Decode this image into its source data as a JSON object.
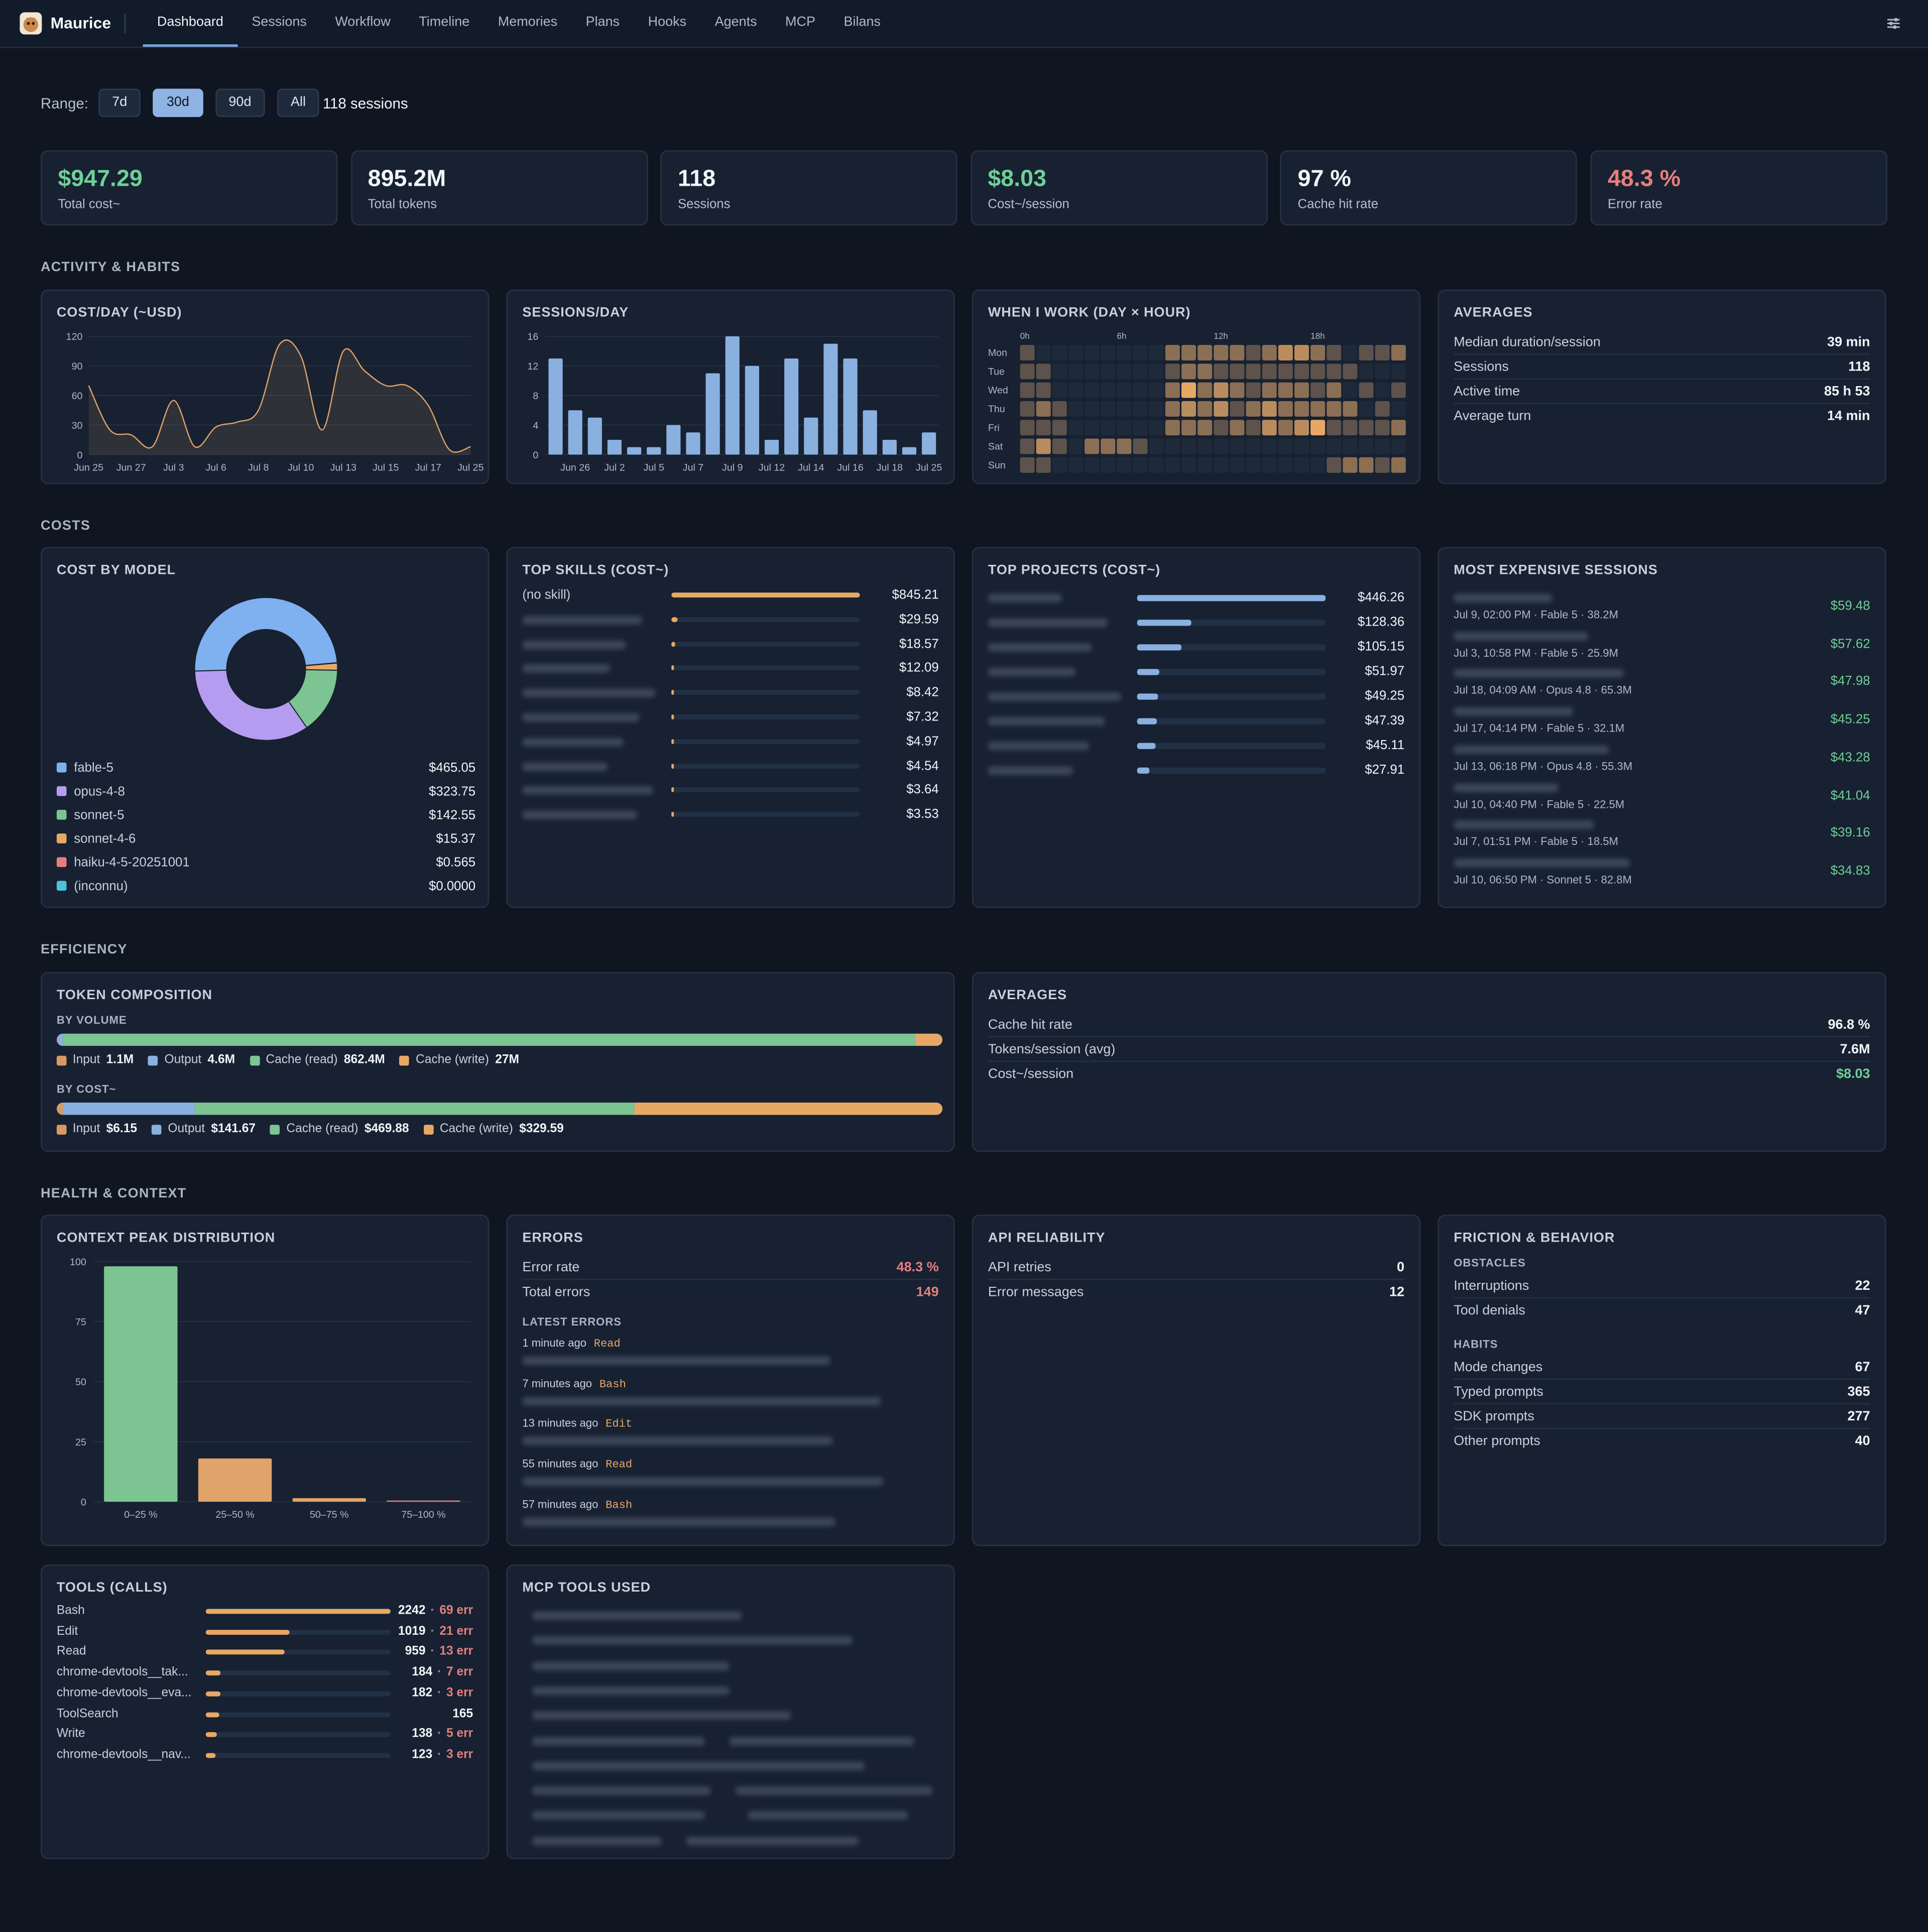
{
  "nav": {
    "brand": "Maurice",
    "tabs": [
      {
        "label": "Dashboard",
        "active": true
      },
      {
        "label": "Sessions"
      },
      {
        "label": "Workflow"
      },
      {
        "label": "Timeline"
      },
      {
        "label": "Memories"
      },
      {
        "label": "Plans"
      },
      {
        "label": "Hooks"
      },
      {
        "label": "Agents"
      },
      {
        "label": "MCP"
      },
      {
        "label": "Bilans"
      }
    ]
  },
  "range": {
    "label": "Range:",
    "options": [
      {
        "label": "7d"
      },
      {
        "label": "30d",
        "selected": true
      },
      {
        "label": "90d"
      },
      {
        "label": "All"
      }
    ],
    "summary": "118 sessions"
  },
  "kpis": [
    {
      "value": "$947.29",
      "label": "Total cost~",
      "color": "#6fcf97"
    },
    {
      "value": "895.2M",
      "label": "Total tokens",
      "color": "#f2f5f9"
    },
    {
      "value": "118",
      "label": "Sessions",
      "color": "#f2f5f9"
    },
    {
      "value": "$8.03",
      "label": "Cost~/session",
      "color": "#6fcf97"
    },
    {
      "value": "97 %",
      "label": "Cache hit rate",
      "color": "#f2f5f9"
    },
    {
      "value": "48.3 %",
      "label": "Error rate",
      "color": "#e57f7f"
    }
  ],
  "sections": [
    "ACTIVITY & HABITS",
    "COSTS",
    "EFFICIENCY",
    "HEALTH & CONTEXT"
  ],
  "chart_data": [
    {
      "type": "line",
      "title": "COST/DAY (~USD)",
      "categories": [
        "Jun 25",
        null,
        "Jun 27",
        null,
        "Jul 3",
        null,
        "Jul 6",
        null,
        "Jul 8",
        null,
        "Jul 10",
        null,
        "Jul 13",
        null,
        "Jul 15",
        null,
        "Jul 17",
        null,
        "Jul 25"
      ],
      "values": [
        70,
        25,
        20,
        8,
        55,
        8,
        28,
        33,
        45,
        112,
        100,
        25,
        105,
        85,
        70,
        70,
        50,
        5,
        8
      ],
      "ylim": [
        0,
        120
      ],
      "yticks": [
        0,
        30,
        60,
        90,
        120
      ],
      "color": "#e0a36a",
      "grid": true
    },
    {
      "type": "bar",
      "title": "SESSIONS/DAY",
      "categories": [
        null,
        "Jun 26",
        null,
        "Jul 2",
        null,
        "Jul 5",
        null,
        "Jul 7",
        null,
        "Jul 9",
        null,
        "Jul 12",
        null,
        "Jul 14",
        null,
        "Jul 16",
        null,
        "Jul 18",
        null,
        "Jul 25"
      ],
      "values": [
        13,
        6,
        5,
        2,
        1,
        1,
        4,
        3,
        11,
        16,
        12,
        2,
        13,
        5,
        15,
        13,
        6,
        2,
        1,
        3
      ],
      "ylim": [
        0,
        16
      ],
      "yticks": [
        0,
        4,
        8,
        12,
        16
      ],
      "color": "#8ab0e0",
      "grid": true
    },
    {
      "type": "heatmap",
      "title": "WHEN I WORK (DAY × HOUR)",
      "rows": [
        "Mon",
        "Tue",
        "Wed",
        "Thu",
        "Fri",
        "Sat",
        "Sun"
      ],
      "columns": [
        "0h",
        null,
        null,
        null,
        null,
        null,
        "6h",
        null,
        null,
        null,
        null,
        null,
        "12h",
        null,
        null,
        null,
        null,
        null,
        "18h",
        null,
        null,
        null,
        null,
        null
      ],
      "values": [
        [
          1,
          0,
          0,
          0,
          0,
          0,
          0,
          0,
          0,
          2,
          2,
          2,
          2,
          2,
          1,
          2,
          3,
          3,
          2,
          1,
          0,
          1,
          1,
          2
        ],
        [
          1,
          1,
          0,
          0,
          0,
          0,
          0,
          0,
          0,
          1,
          2,
          2,
          1,
          1,
          1,
          1,
          1,
          1,
          1,
          1,
          1,
          0,
          0,
          0
        ],
        [
          1,
          1,
          0,
          0,
          0,
          0,
          0,
          0,
          0,
          2,
          4,
          2,
          3,
          2,
          1,
          2,
          2,
          2,
          1,
          2,
          0,
          1,
          0,
          1
        ],
        [
          1,
          2,
          1,
          0,
          0,
          0,
          0,
          0,
          0,
          2,
          3,
          2,
          3,
          1,
          2,
          3,
          2,
          2,
          2,
          2,
          2,
          0,
          1,
          0
        ],
        [
          1,
          1,
          1,
          0,
          0,
          0,
          0,
          0,
          0,
          2,
          2,
          2,
          1,
          2,
          1,
          3,
          2,
          3,
          4,
          1,
          1,
          1,
          1,
          2
        ],
        [
          1,
          3,
          1,
          0,
          2,
          2,
          2,
          1,
          0,
          0,
          0,
          0,
          0,
          0,
          0,
          0,
          0,
          0,
          0,
          0,
          0,
          0,
          0,
          0
        ],
        [
          1,
          1,
          0,
          0,
          0,
          0,
          0,
          0,
          0,
          0,
          0,
          0,
          0,
          0,
          0,
          0,
          0,
          0,
          0,
          1,
          2,
          2,
          1,
          2
        ]
      ],
      "color": "#e8a865"
    },
    {
      "type": "pie",
      "title": "COST BY MODEL",
      "categories": [
        "fable-5",
        "opus-4-8",
        "sonnet-5",
        "sonnet-4-6",
        "haiku-4-5-20251001",
        "(inconnu)"
      ],
      "values": [
        465.05,
        323.75,
        142.55,
        15.37,
        0.565,
        0
      ],
      "value_labels": [
        "$465.05",
        "$323.75",
        "$142.55",
        "$15.37",
        "$0.565",
        "$0.0000"
      ],
      "colors": [
        "#7fb0f0",
        "#b69cf0",
        "#7cc492",
        "#e8a865",
        "#e57f7f",
        "#4dc3d8"
      ]
    },
    {
      "type": "bar",
      "title": "CONTEXT PEAK DISTRIBUTION",
      "categories": [
        "0–25 %",
        "25–50 %",
        "50–75 %",
        "75–100 %"
      ],
      "values": [
        98,
        18,
        1.5,
        0.5
      ],
      "colors": [
        "#7cc492",
        "#e0a36a",
        "#e0a36a",
        "#e57f7f"
      ],
      "ylim": [
        0,
        100
      ],
      "yticks": [
        0,
        25,
        50,
        75,
        100
      ],
      "grid": true
    }
  ],
  "activity_averages": {
    "title": "AVERAGES",
    "rows": [
      {
        "label": "Median duration/session",
        "value": "39 min"
      },
      {
        "label": "Sessions",
        "value": "118"
      },
      {
        "label": "Active time",
        "value": "85 h 53"
      },
      {
        "label": "Average turn",
        "value": "14 min"
      }
    ]
  },
  "top_skills": {
    "title": "TOP SKILLS (COST~)",
    "xlim": [
      0,
      845.21
    ],
    "color": "#e8a865",
    "items": [
      {
        "name": "(no skill)",
        "value": 845.21,
        "value_label": "$845.21"
      },
      {
        "value": 29.59,
        "value_label": "$29.59"
      },
      {
        "value": 18.57,
        "value_label": "$18.57"
      },
      {
        "value": 12.09,
        "value_label": "$12.09"
      },
      {
        "value": 8.42,
        "value_label": "$8.42"
      },
      {
        "value": 7.32,
        "value_label": "$7.32"
      },
      {
        "value": 4.97,
        "value_label": "$4.97"
      },
      {
        "value": 4.54,
        "value_label": "$4.54"
      },
      {
        "value": 3.64,
        "value_label": "$3.64"
      },
      {
        "value": 3.53,
        "value_label": "$3.53"
      }
    ]
  },
  "top_projects": {
    "title": "TOP PROJECTS (COST~)",
    "xlim": [
      0,
      446.26
    ],
    "color": "#8ab0e0",
    "items": [
      {
        "value": 446.26,
        "value_label": "$446.26"
      },
      {
        "value": 128.36,
        "value_label": "$128.36"
      },
      {
        "value": 105.15,
        "value_label": "$105.15"
      },
      {
        "value": 51.97,
        "value_label": "$51.97"
      },
      {
        "value": 49.25,
        "value_label": "$49.25"
      },
      {
        "value": 47.39,
        "value_label": "$47.39"
      },
      {
        "value": 45.11,
        "value_label": "$45.11"
      },
      {
        "value": 27.91,
        "value_label": "$27.91"
      }
    ]
  },
  "expensive_sessions": {
    "title": "MOST EXPENSIVE SESSIONS",
    "items": [
      {
        "meta": "Jul 9, 02:00 PM · Fable 5 · 38.2M",
        "cost": "$59.48"
      },
      {
        "meta": "Jul 3, 10:58 PM · Fable 5 · 25.9M",
        "cost": "$57.62"
      },
      {
        "meta": "Jul 18, 04:09 AM · Opus 4.8 · 65.3M",
        "cost": "$47.98"
      },
      {
        "meta": "Jul 17, 04:14 PM · Fable 5 · 32.1M",
        "cost": "$45.25"
      },
      {
        "meta": "Jul 13, 06:18 PM · Opus 4.8 · 55.3M",
        "cost": "$43.28"
      },
      {
        "meta": "Jul 10, 04:40 PM · Fable 5 · 22.5M",
        "cost": "$41.04"
      },
      {
        "meta": "Jul 7, 01:51 PM · Fable 5 · 18.5M",
        "cost": "$39.16"
      },
      {
        "meta": "Jul 10, 06:50 PM · Sonnet 5 · 82.8M",
        "cost": "$34.83"
      }
    ]
  },
  "token_composition": {
    "title": "TOKEN COMPOSITION",
    "groups": [
      {
        "label": "BY VOLUME",
        "segments": [
          {
            "name": "Input",
            "value": 1100000,
            "value_label": "1.1M",
            "color": "#d99a62"
          },
          {
            "name": "Output",
            "value": 4600000,
            "value_label": "4.6M",
            "color": "#8ab0e0"
          },
          {
            "name": "Cache (read)",
            "value": 862400000,
            "value_label": "862.4M",
            "color": "#7cc492"
          },
          {
            "name": "Cache (write)",
            "value": 27000000,
            "value_label": "27M",
            "color": "#e8a865"
          }
        ]
      },
      {
        "label": "BY COST~",
        "segments": [
          {
            "name": "Input",
            "value": 6.15,
            "value_label": "$6.15",
            "color": "#d99a62"
          },
          {
            "name": "Output",
            "value": 141.67,
            "value_label": "$141.67",
            "color": "#8ab0e0"
          },
          {
            "name": "Cache (read)",
            "value": 469.88,
            "value_label": "$469.88",
            "color": "#7cc492"
          },
          {
            "name": "Cache (write)",
            "value": 329.59,
            "value_label": "$329.59",
            "color": "#e8a865"
          }
        ]
      }
    ]
  },
  "efficiency_averages": {
    "title": "AVERAGES",
    "rows": [
      {
        "label": "Cache hit rate",
        "value": "96.8 %"
      },
      {
        "label": "Tokens/session (avg)",
        "value": "7.6M"
      },
      {
        "label": "Cost~/session",
        "value": "$8.03",
        "color": "#6fcf97"
      }
    ]
  },
  "errors": {
    "title": "ERRORS",
    "rows": [
      {
        "label": "Error rate",
        "value": "48.3 %",
        "color": "#e57f7f"
      },
      {
        "label": "Total errors",
        "value": "149",
        "color": "#e57f7f"
      }
    ],
    "latest_title": "LATEST ERRORS",
    "latest": [
      {
        "time": "1 minute ago",
        "tool": "Read"
      },
      {
        "time": "7 minutes ago",
        "tool": "Bash"
      },
      {
        "time": "13 minutes ago",
        "tool": "Edit"
      },
      {
        "time": "55 minutes ago",
        "tool": "Read"
      },
      {
        "time": "57 minutes ago",
        "tool": "Bash"
      }
    ]
  },
  "api_reliability": {
    "title": "API RELIABILITY",
    "rows": [
      {
        "label": "API retries",
        "value": "0"
      },
      {
        "label": "Error messages",
        "value": "12"
      }
    ]
  },
  "friction": {
    "title": "FRICTION & BEHAVIOR",
    "groups": [
      {
        "label": "OBSTACLES",
        "rows": [
          {
            "label": "Interruptions",
            "value": "22"
          },
          {
            "label": "Tool denials",
            "value": "47"
          }
        ]
      },
      {
        "label": "HABITS",
        "rows": [
          {
            "label": "Mode changes",
            "value": "67"
          },
          {
            "label": "Typed prompts",
            "value": "365"
          },
          {
            "label": "SDK prompts",
            "value": "277"
          },
          {
            "label": "Other prompts",
            "value": "40"
          }
        ]
      }
    ]
  },
  "tools": {
    "title": "TOOLS (CALLS)",
    "xlim": [
      0,
      2242
    ],
    "color": "#e8a865",
    "items": [
      {
        "name": "Bash",
        "calls": 2242,
        "errors": 69,
        "errors_label": "69 err"
      },
      {
        "name": "Edit",
        "calls": 1019,
        "errors": 21,
        "errors_label": "21 err"
      },
      {
        "name": "Read",
        "calls": 959,
        "errors": 13,
        "errors_label": "13 err"
      },
      {
        "name": "chrome-devtools__tak...",
        "calls": 184,
        "errors": 7,
        "errors_label": "7 err"
      },
      {
        "name": "chrome-devtools__eva...",
        "calls": 182,
        "errors": 3,
        "errors_label": "3 err"
      },
      {
        "name": "ToolSearch",
        "calls": 165
      },
      {
        "name": "Write",
        "calls": 138,
        "errors": 5,
        "errors_label": "5 err"
      },
      {
        "name": "chrome-devtools__nav...",
        "calls": 123,
        "errors": 3,
        "errors_label": "3 err"
      }
    ]
  },
  "mcp_tools": {
    "title": "MCP TOOLS USED"
  }
}
